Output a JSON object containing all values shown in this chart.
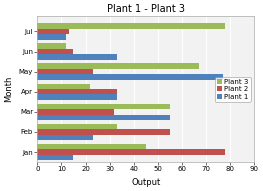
{
  "title": "Plant 1 - Plant 3",
  "xlabel": "Output",
  "ylabel": "Month",
  "months": [
    "Jan",
    "Feb",
    "Mar",
    "Apr",
    "May",
    "Jun",
    "Jul"
  ],
  "plant3": [
    45,
    33,
    55,
    22,
    67,
    12,
    78
  ],
  "plant2": [
    78,
    55,
    32,
    33,
    23,
    15,
    13
  ],
  "plant1": [
    15,
    23,
    55,
    33,
    77,
    33,
    12
  ],
  "colors": {
    "Plant 3": "#9bbb59",
    "Plant 2": "#c0504d",
    "Plant 1": "#4f81bd"
  },
  "xlim": [
    0,
    90
  ],
  "xticks": [
    0,
    10,
    20,
    30,
    40,
    50,
    60,
    70,
    80,
    90
  ],
  "title_fontsize": 7,
  "axis_fontsize": 6,
  "tick_fontsize": 5,
  "legend_fontsize": 5,
  "bar_height": 0.27,
  "fig_width": 2.63,
  "fig_height": 1.91,
  "bg_color": "#f2f2f2"
}
